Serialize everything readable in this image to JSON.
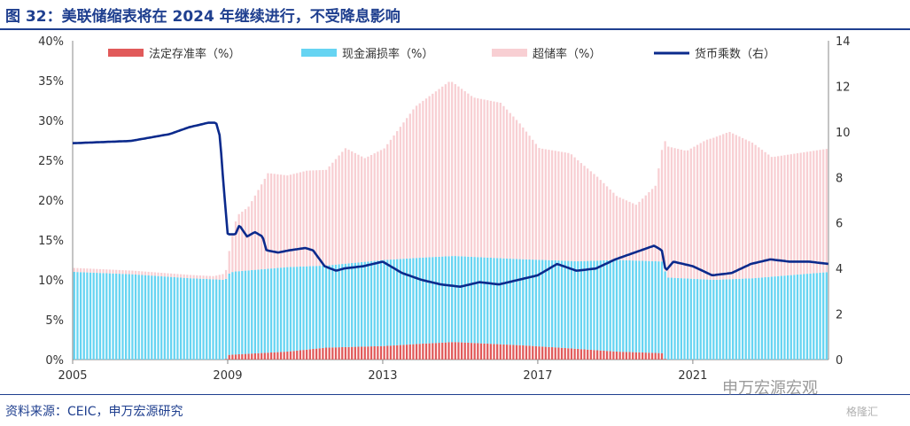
{
  "title": "图 32：美联储缩表将在 2024 年继续进行，不受降息影响",
  "source": "资料来源：CEIC，申万宏源研究",
  "watermark": "申万宏源宏观",
  "watermark2": "格隆汇",
  "chart_data": {
    "type": "bar",
    "stacked": true,
    "x_start": 2005.0,
    "x_step": 0.0833,
    "x_range": [
      2005,
      2024.5
    ],
    "xticks": [
      "2005",
      "2009",
      "2013",
      "2017",
      "2021"
    ],
    "xtick_values": [
      2005,
      2009,
      2013,
      2017,
      2021
    ],
    "yticks_left": [
      "0%",
      "5%",
      "10%",
      "15%",
      "20%",
      "25%",
      "30%",
      "35%",
      "40%"
    ],
    "ylim_left": [
      0,
      40
    ],
    "yticks_right": [
      "0",
      "2",
      "4",
      "6",
      "8",
      "10",
      "12",
      "14"
    ],
    "ylim_right": [
      0,
      14
    ],
    "legend_position": "top",
    "colors": {
      "reserve": "#e15a5a",
      "leakage": "#66d4f2",
      "excess": "#f8cfd3",
      "multiplier": "#0b2a8c"
    },
    "series": [
      {
        "name": "法定存准率（%）",
        "axis": "left",
        "kind": "stacked-bar",
        "knots": [
          [
            2005.0,
            0.0
          ],
          [
            2008.9,
            0.0
          ],
          [
            2009.0,
            0.6
          ],
          [
            2010.5,
            1.0
          ],
          [
            2011.5,
            1.5
          ],
          [
            2013.0,
            1.7
          ],
          [
            2014.0,
            2.0
          ],
          [
            2014.8,
            2.2
          ],
          [
            2016.5,
            1.8
          ],
          [
            2017.5,
            1.5
          ],
          [
            2019.0,
            1.0
          ],
          [
            2020.2,
            0.8
          ],
          [
            2020.25,
            0.0
          ],
          [
            2024.5,
            0.0
          ]
        ]
      },
      {
        "name": "现金漏损率（%）",
        "axis": "left",
        "kind": "stacked-bar",
        "knots": [
          [
            2005.0,
            11.0
          ],
          [
            2006.5,
            10.7
          ],
          [
            2008.0,
            10.2
          ],
          [
            2008.9,
            10.0
          ],
          [
            2009.1,
            10.4
          ],
          [
            2010.5,
            10.6
          ],
          [
            2011.5,
            10.3
          ],
          [
            2013.0,
            10.8
          ],
          [
            2014.0,
            10.8
          ],
          [
            2015.0,
            10.8
          ],
          [
            2016.5,
            10.8
          ],
          [
            2018.0,
            11.0
          ],
          [
            2019.0,
            11.5
          ],
          [
            2020.2,
            11.5
          ],
          [
            2020.3,
            10.3
          ],
          [
            2021.5,
            10.0
          ],
          [
            2022.5,
            10.2
          ],
          [
            2024.5,
            11.0
          ]
        ]
      },
      {
        "name": "超储率（%）",
        "axis": "left",
        "kind": "stacked-bar",
        "knots": [
          [
            2005.0,
            0.5
          ],
          [
            2008.6,
            0.4
          ],
          [
            2008.9,
            0.8
          ],
          [
            2009.2,
            7.0
          ],
          [
            2009.5,
            8.0
          ],
          [
            2010.0,
            12.0
          ],
          [
            2010.5,
            11.5
          ],
          [
            2011.0,
            12.0
          ],
          [
            2011.5,
            12.0
          ],
          [
            2012.0,
            14.5
          ],
          [
            2012.5,
            13.0
          ],
          [
            2013.0,
            14.0
          ],
          [
            2013.8,
            19.0
          ],
          [
            2014.7,
            22.0
          ],
          [
            2015.3,
            20.0
          ],
          [
            2016.0,
            19.5
          ],
          [
            2016.5,
            17.0
          ],
          [
            2017.0,
            14.0
          ],
          [
            2017.8,
            13.5
          ],
          [
            2018.5,
            10.5
          ],
          [
            2019.0,
            8.0
          ],
          [
            2019.5,
            7.0
          ],
          [
            2020.0,
            9.5
          ],
          [
            2020.25,
            16.5
          ],
          [
            2020.8,
            16.0
          ],
          [
            2021.3,
            17.5
          ],
          [
            2021.9,
            18.5
          ],
          [
            2022.5,
            17.0
          ],
          [
            2023.0,
            15.0
          ],
          [
            2024.5,
            15.5
          ]
        ]
      },
      {
        "name": "货币乘数（右）",
        "axis": "right",
        "kind": "line",
        "knots": [
          [
            2005.0,
            9.5
          ],
          [
            2006.5,
            9.6
          ],
          [
            2007.5,
            9.9
          ],
          [
            2008.0,
            10.2
          ],
          [
            2008.5,
            10.4
          ],
          [
            2008.7,
            10.4
          ],
          [
            2008.8,
            9.8
          ],
          [
            2008.9,
            7.5
          ],
          [
            2009.0,
            5.5
          ],
          [
            2009.2,
            5.5
          ],
          [
            2009.3,
            5.9
          ],
          [
            2009.5,
            5.4
          ],
          [
            2009.7,
            5.6
          ],
          [
            2009.9,
            5.4
          ],
          [
            2010.0,
            4.8
          ],
          [
            2010.3,
            4.7
          ],
          [
            2010.6,
            4.8
          ],
          [
            2011.0,
            4.9
          ],
          [
            2011.2,
            4.8
          ],
          [
            2011.5,
            4.1
          ],
          [
            2011.8,
            3.9
          ],
          [
            2012.0,
            4.0
          ],
          [
            2012.5,
            4.1
          ],
          [
            2013.0,
            4.3
          ],
          [
            2013.5,
            3.8
          ],
          [
            2014.0,
            3.5
          ],
          [
            2014.5,
            3.3
          ],
          [
            2015.0,
            3.2
          ],
          [
            2015.5,
            3.4
          ],
          [
            2016.0,
            3.3
          ],
          [
            2016.5,
            3.5
          ],
          [
            2017.0,
            3.7
          ],
          [
            2017.5,
            4.2
          ],
          [
            2018.0,
            3.9
          ],
          [
            2018.5,
            4.0
          ],
          [
            2019.0,
            4.4
          ],
          [
            2019.5,
            4.7
          ],
          [
            2020.0,
            5.0
          ],
          [
            2020.2,
            4.8
          ],
          [
            2020.3,
            3.9
          ],
          [
            2020.5,
            4.3
          ],
          [
            2021.0,
            4.1
          ],
          [
            2021.5,
            3.7
          ],
          [
            2022.0,
            3.8
          ],
          [
            2022.5,
            4.2
          ],
          [
            2023.0,
            4.4
          ],
          [
            2023.5,
            4.3
          ],
          [
            2024.0,
            4.3
          ],
          [
            2024.5,
            4.2
          ]
        ]
      }
    ]
  }
}
